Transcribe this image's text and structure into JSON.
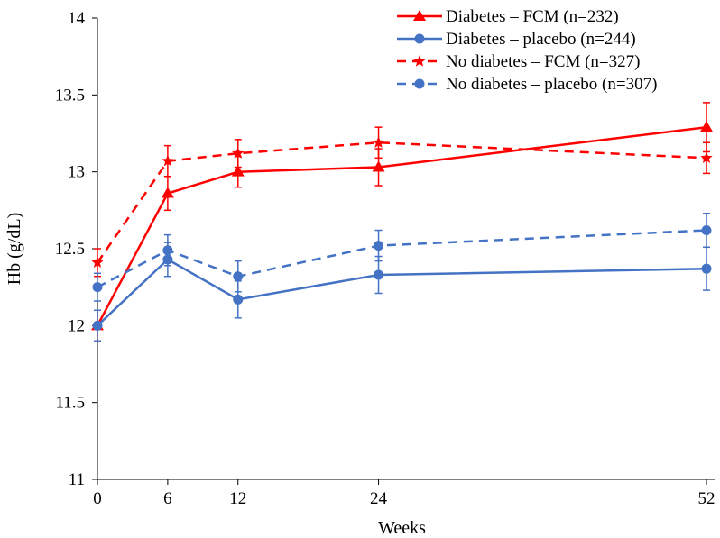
{
  "chart_data": {
    "type": "line",
    "title": "",
    "xlabel": "Weeks",
    "ylabel": "Hb (g/dL)",
    "x": [
      0,
      6,
      12,
      24,
      52
    ],
    "x_tick_labels": [
      "0",
      "6",
      "12",
      "24",
      "52"
    ],
    "ylim": [
      11,
      14
    ],
    "y_ticks": [
      11,
      11.5,
      12,
      12.5,
      13,
      13.5,
      14
    ],
    "y_tick_labels": [
      "11",
      "11.5",
      "12",
      "12.5",
      "13",
      "13.5",
      "14"
    ],
    "grid": false,
    "legend_position": "top-right",
    "series": [
      {
        "name": "Diabetes – FCM (n=232)",
        "color": "#ff0000",
        "line_style": "solid",
        "marker": "triangle",
        "values": [
          12.0,
          12.86,
          13.0,
          13.03,
          13.29
        ],
        "error": [
          0.1,
          0.11,
          0.1,
          0.12,
          0.16
        ]
      },
      {
        "name": "Diabetes – placebo (n=244)",
        "color": "#4472c4",
        "line_style": "solid",
        "marker": "circle",
        "values": [
          12.0,
          12.43,
          12.17,
          12.33,
          12.37
        ],
        "error": [
          0.1,
          0.11,
          0.12,
          0.12,
          0.14
        ]
      },
      {
        "name": "No diabetes – FCM (n=327)",
        "color": "#ff0000",
        "line_style": "dashed",
        "marker": "star",
        "values": [
          12.41,
          13.07,
          13.12,
          13.19,
          13.09
        ],
        "error": [
          0.09,
          0.1,
          0.09,
          0.1,
          0.1
        ]
      },
      {
        "name": "No diabetes – placebo (n=307)",
        "color": "#4472c4",
        "line_style": "dashed",
        "marker": "circle",
        "values": [
          12.25,
          12.49,
          12.32,
          12.52,
          12.62
        ],
        "error": [
          0.09,
          0.1,
          0.1,
          0.1,
          0.11
        ]
      }
    ]
  }
}
